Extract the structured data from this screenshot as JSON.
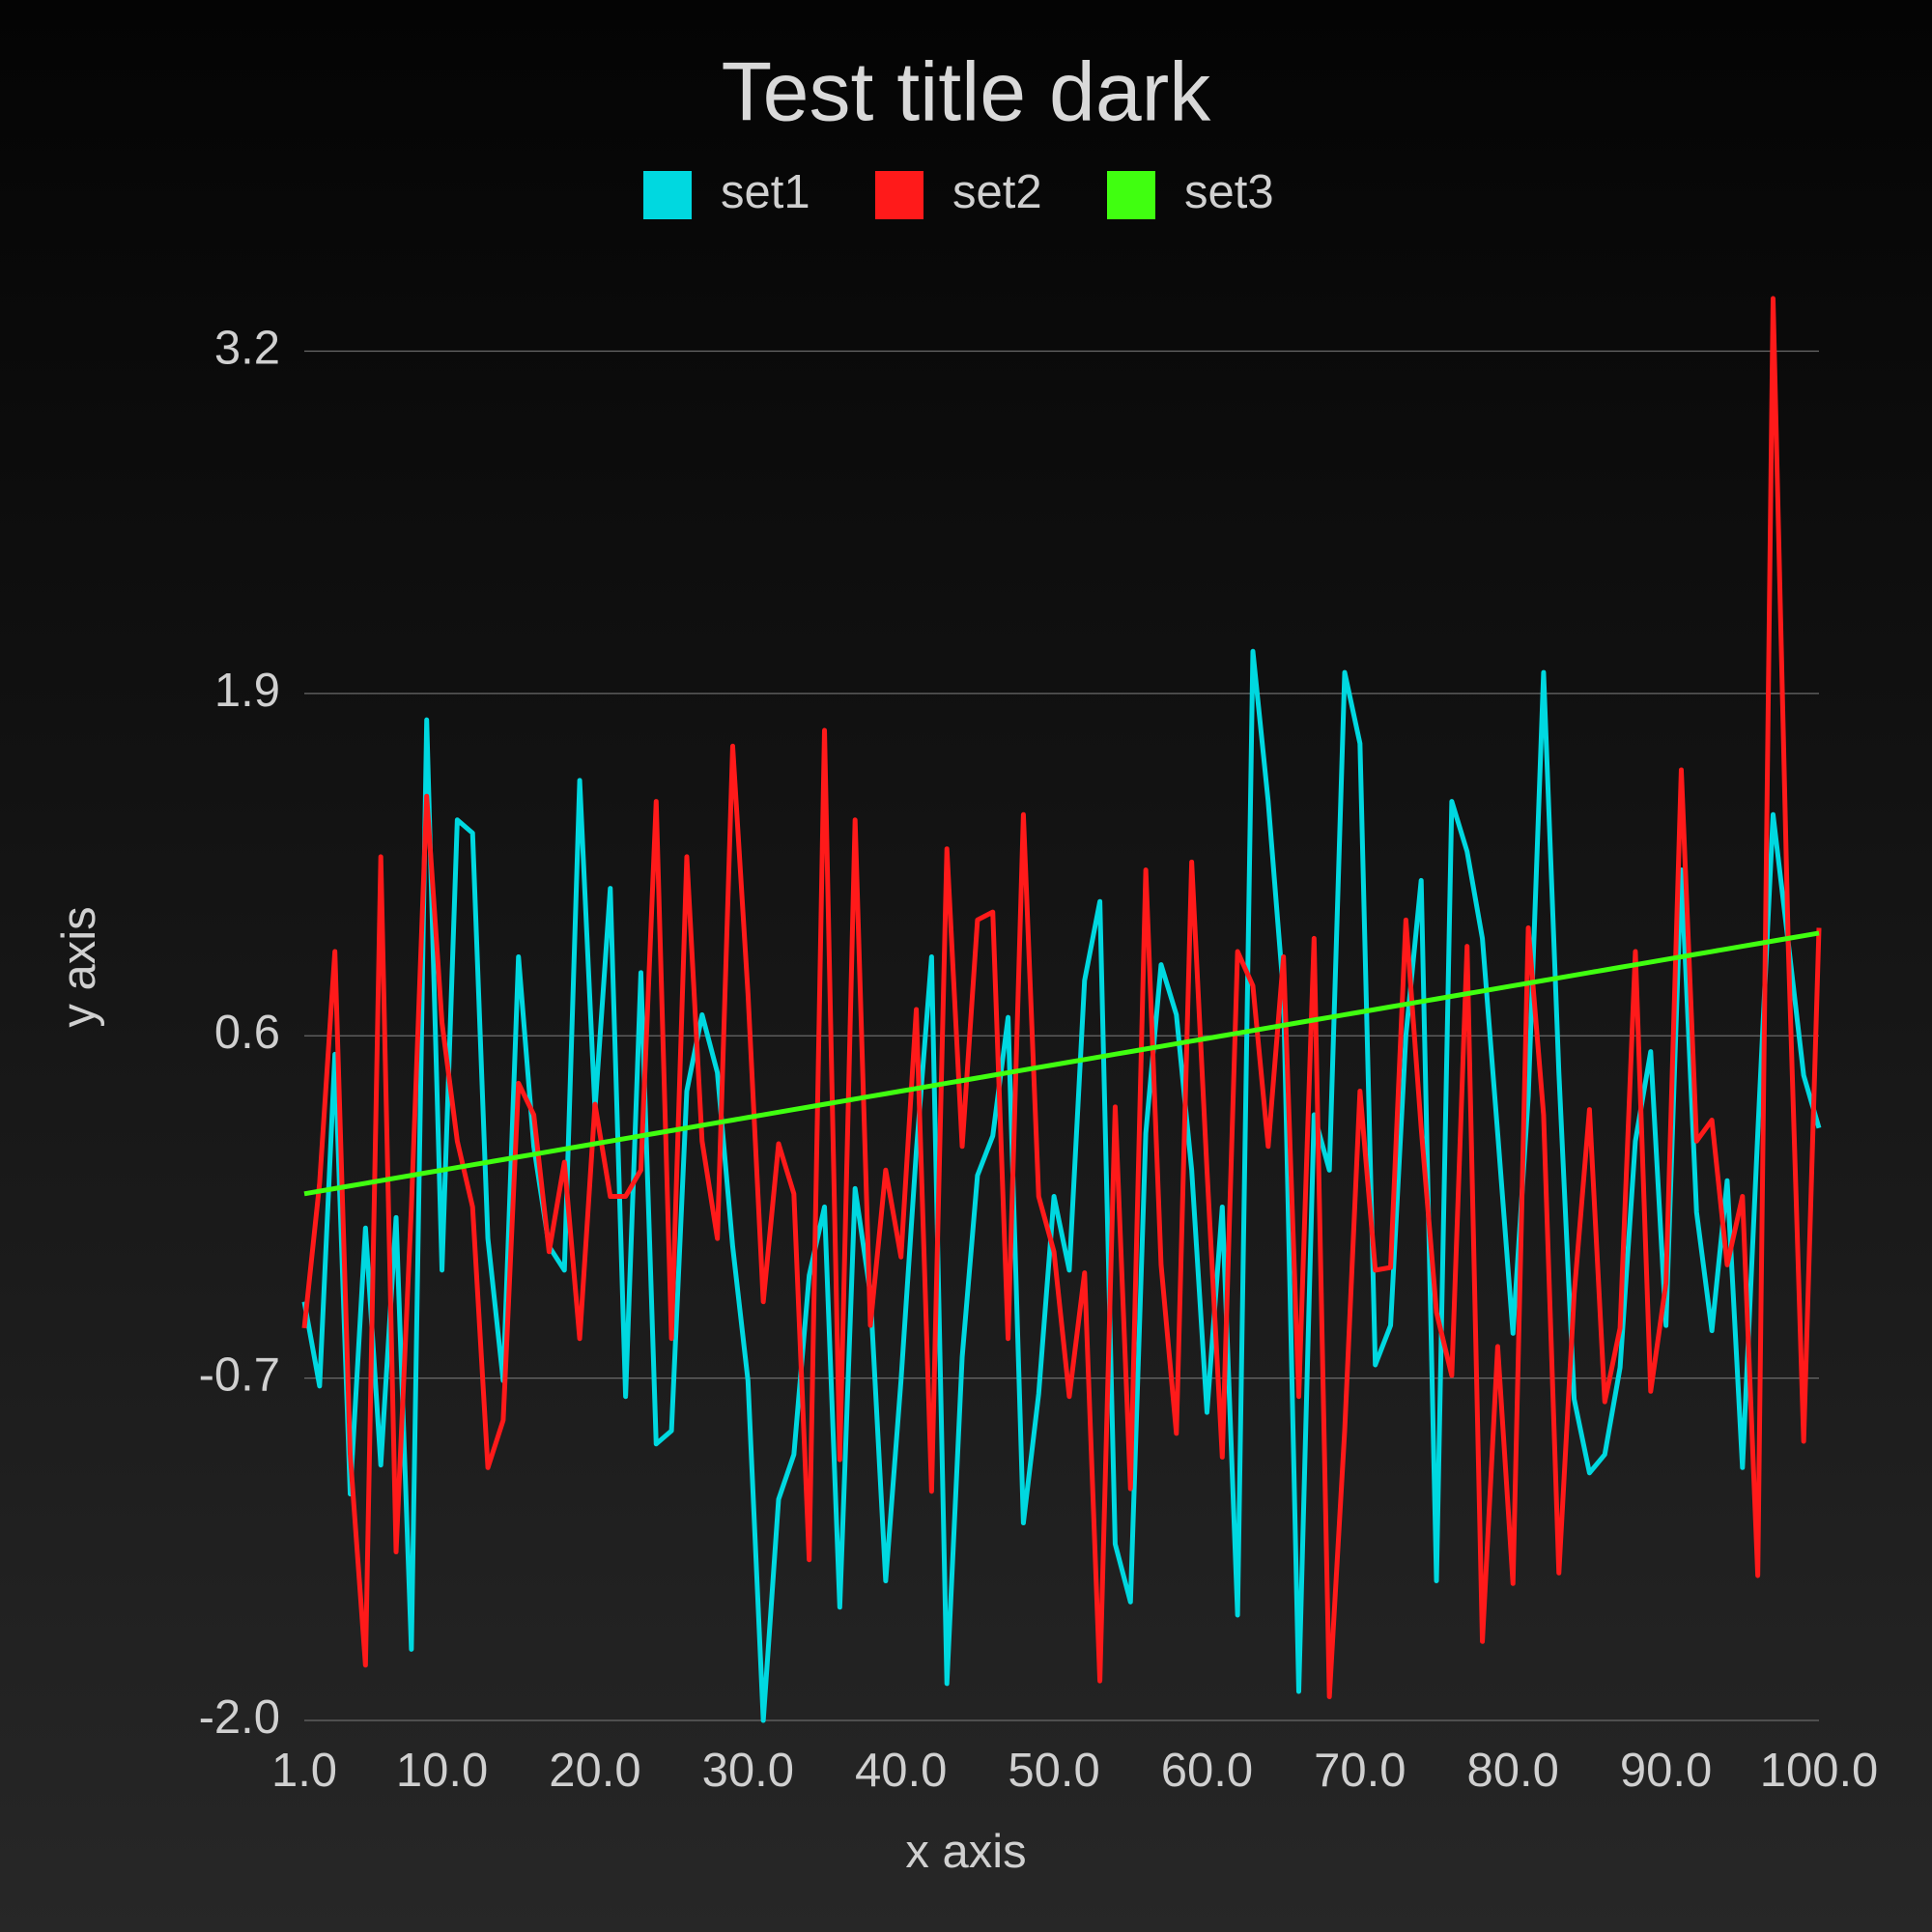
{
  "chart_data": {
    "type": "line",
    "title": "Test title dark",
    "xlabel": "x axis",
    "ylabel": "y axis",
    "x": [
      1,
      2,
      3,
      4,
      5,
      6,
      7,
      8,
      9,
      10,
      11,
      12,
      13,
      14,
      15,
      16,
      17,
      18,
      19,
      20,
      21,
      22,
      23,
      24,
      25,
      26,
      27,
      28,
      29,
      30,
      31,
      32,
      33,
      34,
      35,
      36,
      37,
      38,
      39,
      40,
      41,
      42,
      43,
      44,
      45,
      46,
      47,
      48,
      49,
      50,
      51,
      52,
      53,
      54,
      55,
      56,
      57,
      58,
      59,
      60,
      61,
      62,
      63,
      64,
      65,
      66,
      67,
      68,
      69,
      70,
      71,
      72,
      73,
      74,
      75,
      76,
      77,
      78,
      79,
      80,
      81,
      82,
      83,
      84,
      85,
      86,
      87,
      88,
      89,
      90,
      91,
      92,
      93,
      94,
      95,
      96,
      97,
      98,
      99,
      100
    ],
    "series": [
      {
        "name": "set1",
        "color": "#00d8e0",
        "values": [
          -0.41,
          -0.73,
          0.53,
          -1.14,
          -0.13,
          -1.03,
          -0.09,
          -1.73,
          1.8,
          -0.29,
          1.42,
          1.37,
          -0.17,
          -0.71,
          0.9,
          0.18,
          -0.2,
          -0.29,
          1.57,
          0.32,
          1.16,
          -0.77,
          0.84,
          -0.95,
          -0.9,
          0.39,
          0.68,
          0.46,
          -0.2,
          -0.71,
          -2.0,
          -1.16,
          -0.99,
          -0.31,
          -0.05,
          -1.57,
          0.02,
          -0.38,
          -1.47,
          -0.71,
          0.16,
          0.9,
          -1.86,
          -0.62,
          0.07,
          0.22,
          0.67,
          -1.25,
          -0.76,
          -0.01,
          -0.29,
          0.81,
          1.11,
          -1.33,
          -1.55,
          0.23,
          0.87,
          0.68,
          0.09,
          -0.83,
          -0.05,
          -1.6,
          2.06,
          1.49,
          0.76,
          -1.89,
          0.3,
          0.09,
          1.98,
          1.71,
          -0.65,
          -0.5,
          0.6,
          1.19,
          -1.47,
          1.49,
          1.3,
          0.97,
          0.23,
          -0.53,
          0.37,
          1.98,
          0.46,
          -0.78,
          -1.06,
          -0.99,
          -0.66,
          0.2,
          0.54,
          -0.5,
          1.23,
          -0.07,
          -0.52,
          0.05,
          -1.04,
          0.23,
          1.44,
          0.95,
          0.45,
          0.25
        ]
      },
      {
        "name": "set2",
        "color": "#ff1a1a",
        "values": [
          -0.51,
          0.04,
          0.92,
          -0.99,
          -1.79,
          1.28,
          -1.36,
          -0.05,
          1.51,
          0.65,
          0.2,
          -0.05,
          -1.04,
          -0.86,
          0.42,
          0.3,
          -0.22,
          0.12,
          -0.55,
          0.34,
          -0.01,
          -0.01,
          0.09,
          1.49,
          -0.55,
          1.28,
          0.2,
          -0.17,
          1.7,
          0.76,
          -0.41,
          0.19,
          0.0,
          -1.39,
          1.76,
          -1.01,
          1.42,
          -0.5,
          0.09,
          -0.24,
          0.7,
          -1.13,
          1.31,
          0.18,
          1.04,
          1.07,
          -0.55,
          1.44,
          -0.01,
          -0.22,
          -0.77,
          -0.3,
          -1.85,
          0.33,
          -1.12,
          1.23,
          -0.27,
          -0.91,
          1.26,
          0.09,
          -1.0,
          0.92,
          0.79,
          0.18,
          0.9,
          -0.77,
          0.97,
          -1.91,
          -0.9,
          0.39,
          -0.29,
          -0.28,
          1.04,
          0.25,
          -0.45,
          -0.69,
          0.94,
          -1.7,
          -0.58,
          -1.48,
          1.01,
          0.3,
          -1.44,
          -0.38,
          0.32,
          -0.79,
          -0.51,
          0.92,
          -0.75,
          -0.34,
          1.61,
          0.2,
          0.28,
          -0.27,
          -0.01,
          -1.45,
          3.4,
          0.93,
          -0.94,
          1.01
        ]
      },
      {
        "name": "set3",
        "color": "#40ff10",
        "values": [
          0,
          0.01,
          0.02,
          0.03,
          0.04,
          0.05,
          0.06,
          0.07,
          0.08,
          0.09,
          0.1,
          0.11,
          0.12,
          0.13,
          0.14,
          0.15,
          0.16,
          0.17,
          0.18,
          0.19,
          0.2,
          0.21,
          0.22,
          0.23,
          0.24,
          0.25,
          0.26,
          0.27,
          0.28,
          0.29,
          0.3,
          0.31,
          0.32,
          0.33,
          0.34,
          0.35,
          0.36,
          0.37,
          0.38,
          0.39,
          0.4,
          0.41,
          0.42,
          0.43,
          0.44,
          0.45,
          0.46,
          0.47,
          0.48,
          0.49,
          0.5,
          0.51,
          0.52,
          0.53,
          0.54,
          0.55,
          0.56,
          0.57,
          0.58,
          0.59,
          0.6,
          0.61,
          0.62,
          0.63,
          0.64,
          0.65,
          0.66,
          0.67,
          0.68,
          0.69,
          0.7,
          0.71,
          0.72,
          0.73,
          0.74,
          0.75,
          0.76,
          0.77,
          0.78,
          0.79,
          0.8,
          0.81,
          0.82,
          0.83,
          0.84,
          0.85,
          0.86,
          0.87,
          0.88,
          0.89,
          0.9,
          0.91,
          0.92,
          0.93,
          0.94,
          0.95,
          0.96,
          0.97,
          0.98,
          0.99
        ]
      }
    ],
    "xlim": [
      1,
      100
    ],
    "xticks": [
      {
        "value": 1,
        "label": "1.0"
      },
      {
        "value": 10,
        "label": "10.0"
      },
      {
        "value": 20,
        "label": "20.0"
      },
      {
        "value": 30,
        "label": "30.0"
      },
      {
        "value": 40,
        "label": "40.0"
      },
      {
        "value": 50,
        "label": "50.0"
      },
      {
        "value": 60,
        "label": "60.0"
      },
      {
        "value": 70,
        "label": "70.0"
      },
      {
        "value": 80,
        "label": "80.0"
      },
      {
        "value": 90,
        "label": "90.0"
      },
      {
        "value": 100,
        "label": "100.0"
      }
    ],
    "ylim": [
      -2,
      3.4
    ],
    "yticks": [
      {
        "value": -2,
        "label": "-2.0"
      },
      -0.7,
      0.6,
      1.9,
      3.2
    ],
    "grid": true,
    "legend": "top"
  }
}
